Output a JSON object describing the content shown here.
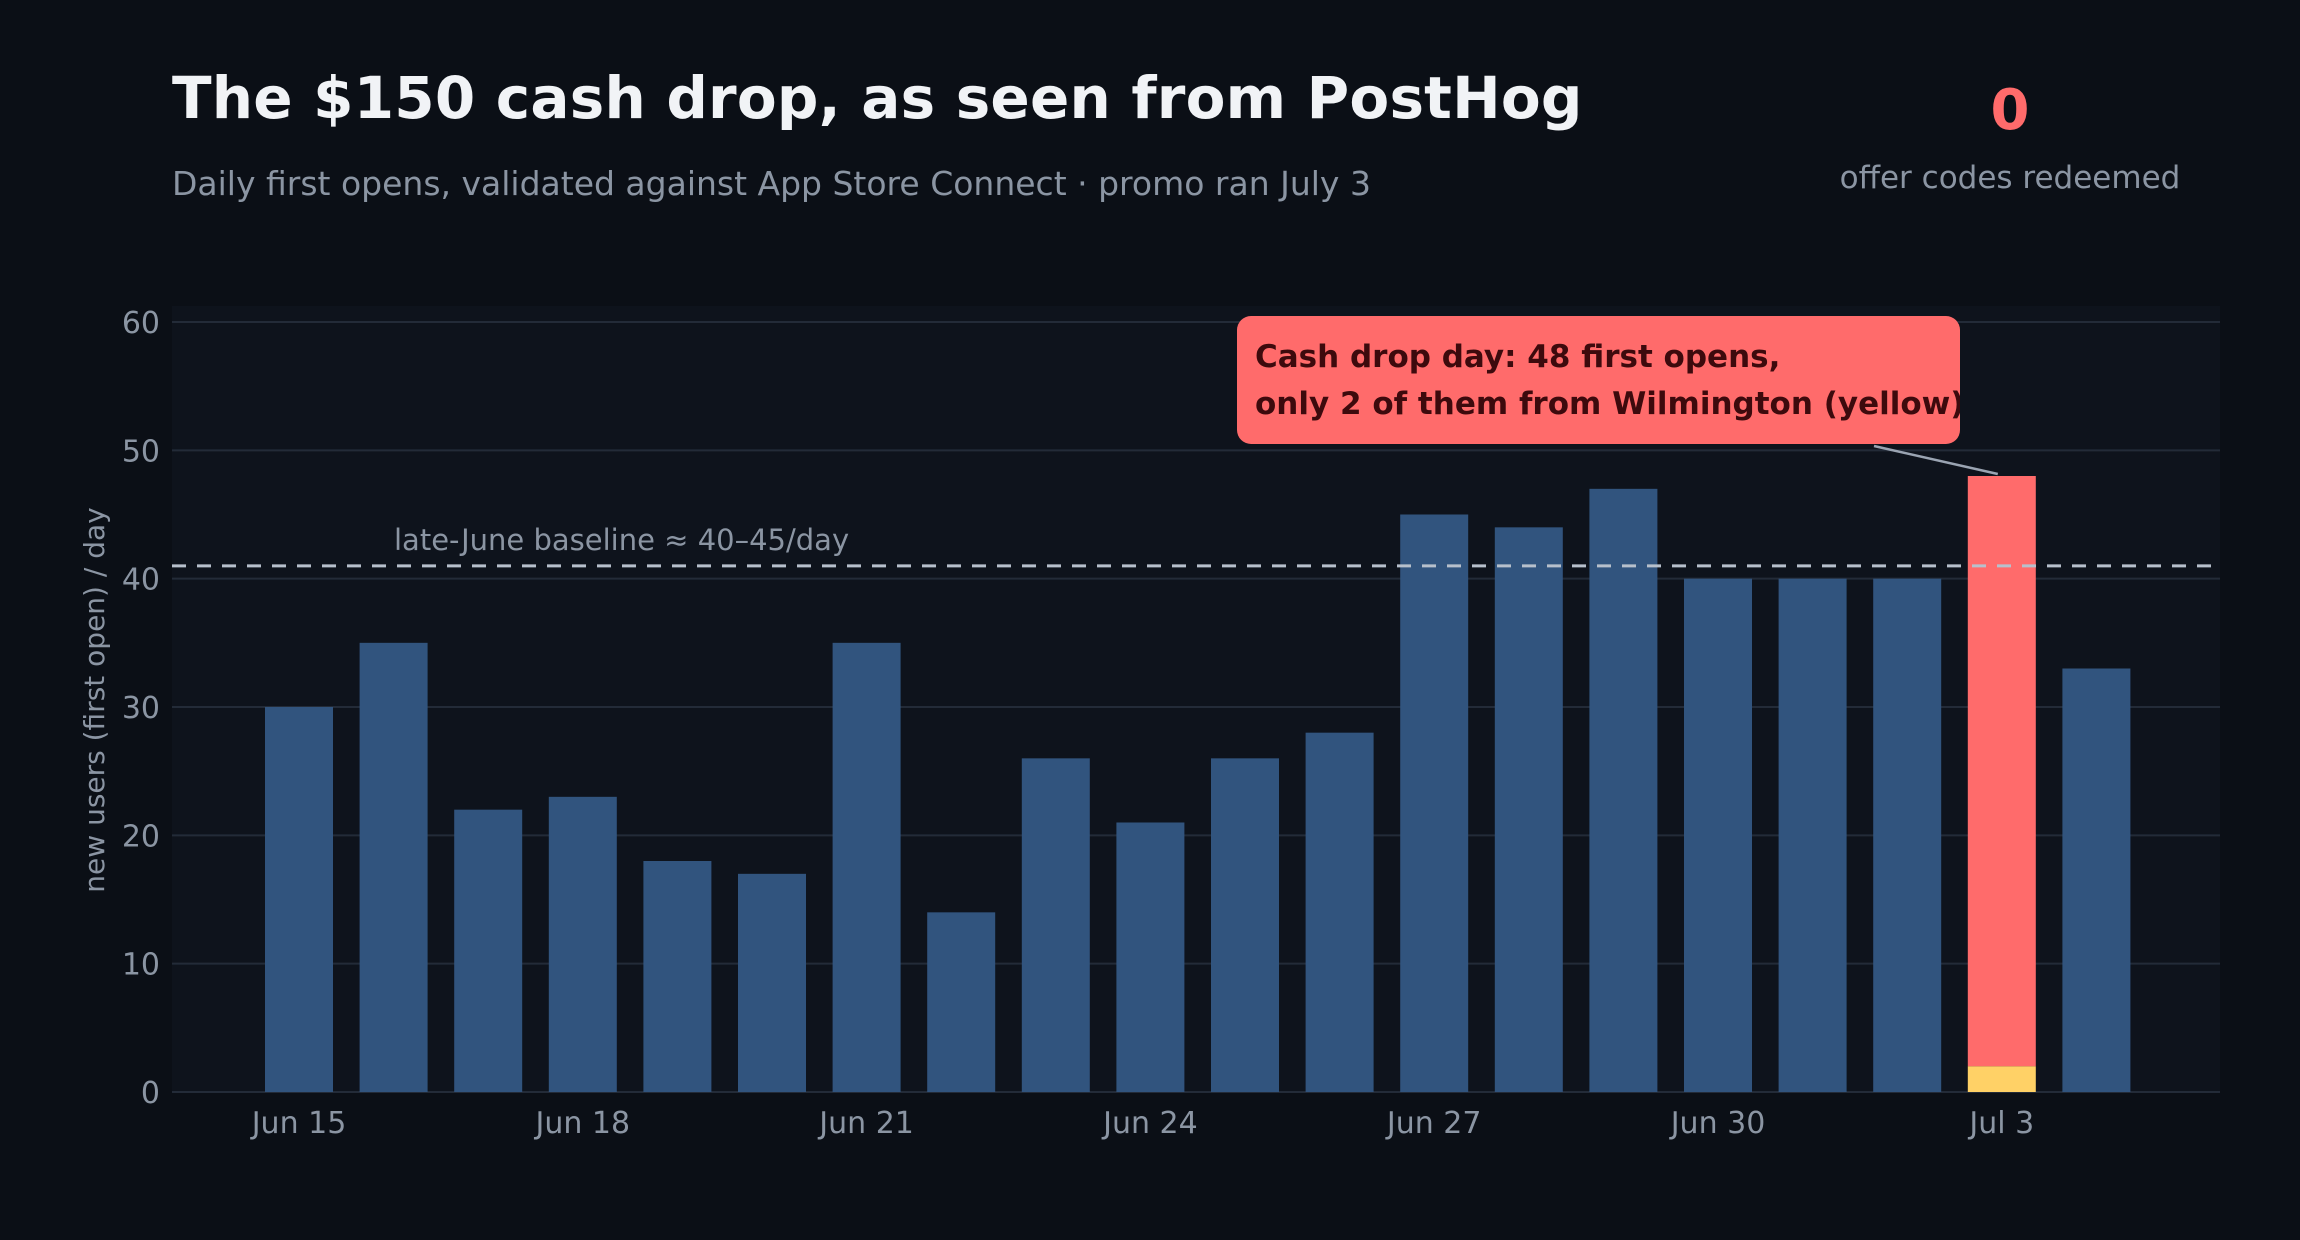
{
  "header": {
    "title": "The $150 cash drop, as seen from PostHog",
    "subtitle": "Daily first opens, validated against App Store Connect · promo ran July 3"
  },
  "kpi": {
    "value": "0",
    "label": "offer codes redeemed"
  },
  "annotation": {
    "line1": "Cash drop day: 48 first opens,",
    "line2": "only 2 of them from Wilmington (yellow)"
  },
  "colors": {
    "background": "#0b0f16",
    "plot_background": "#0e131c",
    "bar": "#31547e",
    "highlight": "#ff6b6b",
    "wilmington": "#ffd166",
    "grid": "#232b38",
    "text_muted": "#8b95a3"
  },
  "chart_data": {
    "type": "bar",
    "ylabel": "new users (first open) / day",
    "xlabel": "",
    "ylim": [
      0,
      60
    ],
    "yticks": [
      0,
      10,
      20,
      30,
      40,
      50,
      60
    ],
    "grid": true,
    "categories": [
      "Jun 15",
      "Jun 16",
      "Jun 17",
      "Jun 18",
      "Jun 19",
      "Jun 20",
      "Jun 21",
      "Jun 22",
      "Jun 23",
      "Jun 24",
      "Jun 25",
      "Jun 26",
      "Jun 27",
      "Jun 28",
      "Jun 29",
      "Jun 30",
      "Jul 1",
      "Jul 2",
      "Jul 3",
      "Jul 4"
    ],
    "tick_labels": [
      "Jun 15",
      "Jun 18",
      "Jun 21",
      "Jun 24",
      "Jun 27",
      "Jun 30",
      "Jul 3"
    ],
    "values": [
      30,
      35,
      22,
      23,
      18,
      17,
      35,
      14,
      26,
      21,
      26,
      28,
      45,
      44,
      47,
      40,
      40,
      40,
      48,
      33
    ],
    "highlight": {
      "category": "Jul 3",
      "total": 48,
      "wilmington": 2
    },
    "baseline": {
      "value": 41,
      "label": "late-June baseline ≈ 40–45/day"
    }
  }
}
